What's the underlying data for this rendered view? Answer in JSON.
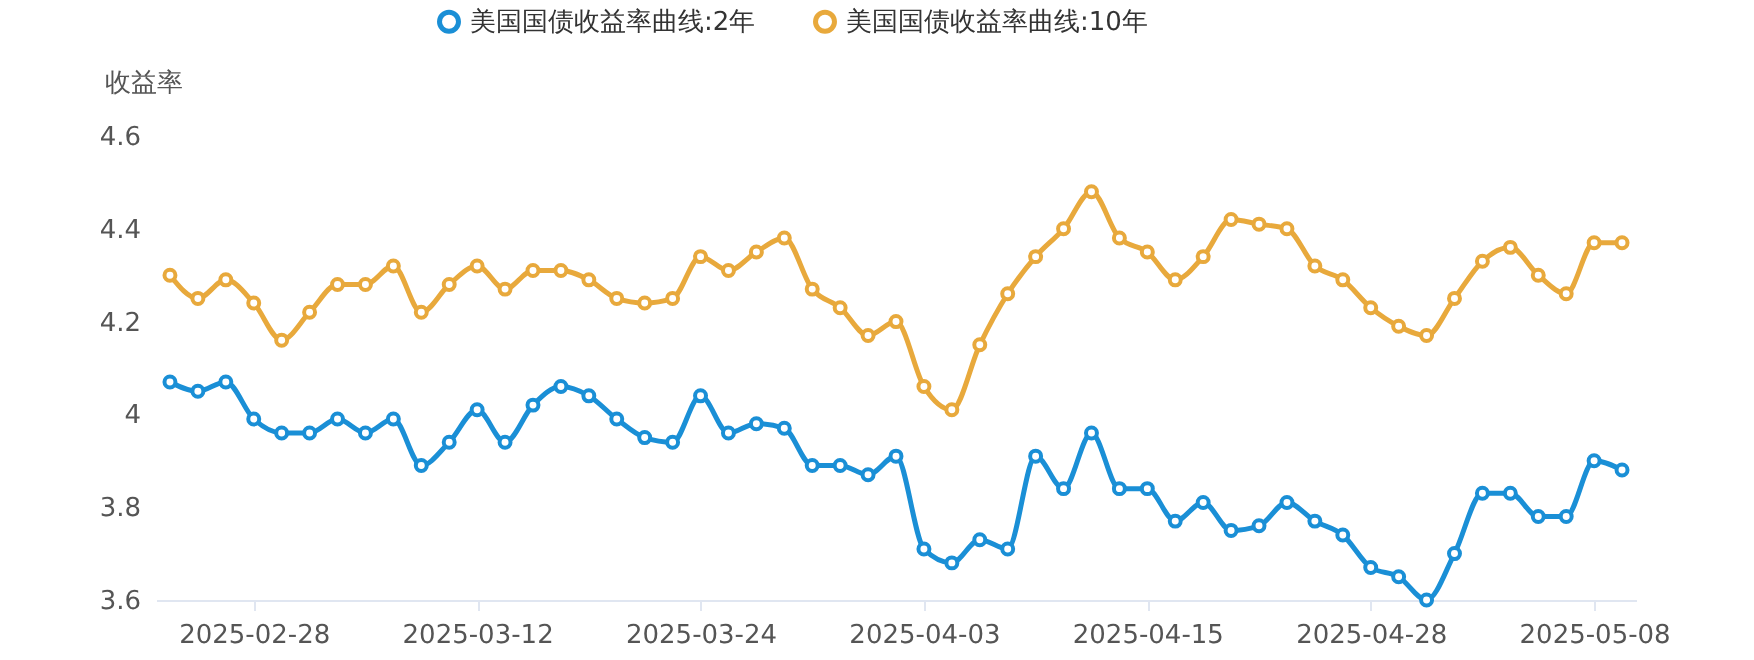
{
  "chart_data": {
    "type": "line",
    "ylabel": "收益率",
    "legend": "top",
    "marker": "circle",
    "line_style": "solid",
    "categories": [
      null,
      null,
      null,
      "2025-02-28",
      null,
      null,
      null,
      null,
      null,
      null,
      null,
      "2025-03-12",
      null,
      null,
      null,
      null,
      null,
      null,
      null,
      "2025-03-24",
      null,
      null,
      null,
      null,
      null,
      null,
      null,
      "2025-04-03",
      null,
      null,
      null,
      null,
      null,
      null,
      null,
      "2025-04-15",
      null,
      null,
      null,
      null,
      null,
      null,
      null,
      "2025-04-28",
      null,
      null,
      null,
      null,
      null,
      null,
      null,
      "2025-05-08",
      null
    ],
    "ylim": [
      3.6,
      4.6
    ],
    "yticks": [
      3.6,
      3.8,
      4,
      4.2,
      4.4,
      4.6
    ],
    "series": [
      {
        "name": "美国国债收益率曲线:2年",
        "color": "#1a8fd6",
        "values": [
          4.07,
          4.05,
          4.07,
          3.99,
          3.96,
          3.96,
          3.99,
          3.96,
          3.99,
          3.89,
          3.94,
          4.01,
          3.94,
          4.02,
          4.06,
          4.04,
          3.99,
          3.95,
          3.94,
          4.04,
          3.96,
          3.98,
          3.97,
          3.89,
          3.89,
          3.87,
          3.91,
          3.71,
          3.68,
          3.73,
          3.71,
          3.91,
          3.84,
          3.96,
          3.84,
          3.84,
          3.77,
          3.81,
          3.75,
          3.76,
          3.81,
          3.77,
          3.74,
          3.67,
          3.65,
          3.6,
          3.7,
          3.83,
          3.83,
          3.78,
          3.78,
          3.9,
          3.88
        ]
      },
      {
        "name": "美国国债收益率曲线:10年",
        "color": "#e8a93c",
        "values": [
          4.3,
          4.25,
          4.29,
          4.24,
          4.16,
          4.22,
          4.28,
          4.28,
          4.32,
          4.22,
          4.28,
          4.32,
          4.27,
          4.31,
          4.31,
          4.29,
          4.25,
          4.24,
          4.25,
          4.34,
          4.31,
          4.35,
          4.38,
          4.27,
          4.23,
          4.17,
          4.2,
          4.06,
          4.01,
          4.15,
          4.26,
          4.34,
          4.4,
          4.48,
          4.38,
          4.35,
          4.29,
          4.34,
          4.42,
          4.41,
          4.4,
          4.32,
          4.29,
          4.23,
          4.19,
          4.17,
          4.25,
          4.33,
          4.36,
          4.3,
          4.26,
          4.37,
          4.37
        ]
      }
    ]
  }
}
